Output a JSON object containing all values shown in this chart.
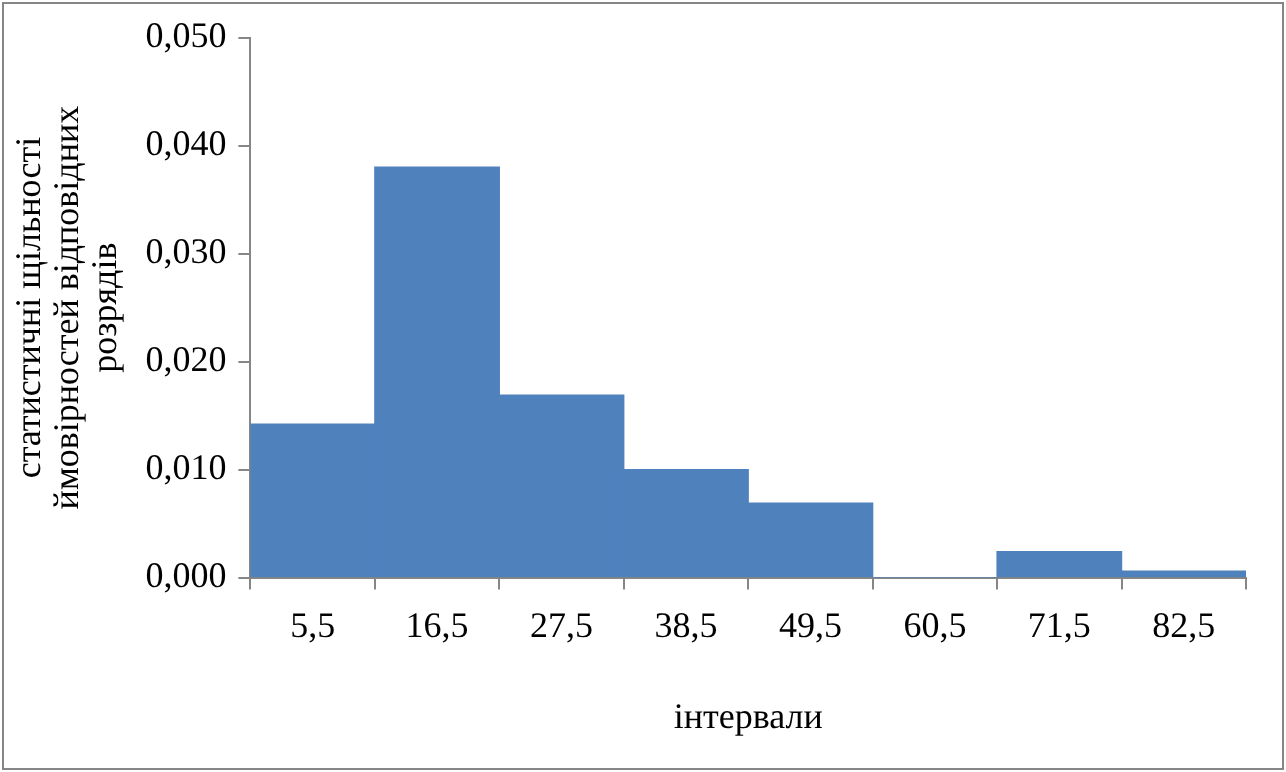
{
  "chart_data": {
    "type": "bar",
    "xlabel": "інтервали",
    "ylabel": "статистичні щільності ймовірностей відповідних розрядів",
    "categories": [
      "5,5",
      "16,5",
      "27,5",
      "38,5",
      "49,5",
      "60,5",
      "71,5",
      "82,5"
    ],
    "values": [
      0.0142,
      0.038,
      0.0169,
      0.01,
      0.0069,
      0,
      0.0024,
      0.0006
    ],
    "color": "#4f81bd",
    "ylim": [
      0,
      0.05
    ],
    "yticks": [
      {
        "value": 0,
        "label": "0,000"
      },
      {
        "value": 0.01,
        "label": "0,010"
      },
      {
        "value": 0.02,
        "label": "0,020"
      },
      {
        "value": 0.03,
        "label": "0,030"
      },
      {
        "value": 0.04,
        "label": "0,040"
      },
      {
        "value": 0.05,
        "label": "0,050"
      }
    ],
    "grid": false,
    "legend": false
  }
}
